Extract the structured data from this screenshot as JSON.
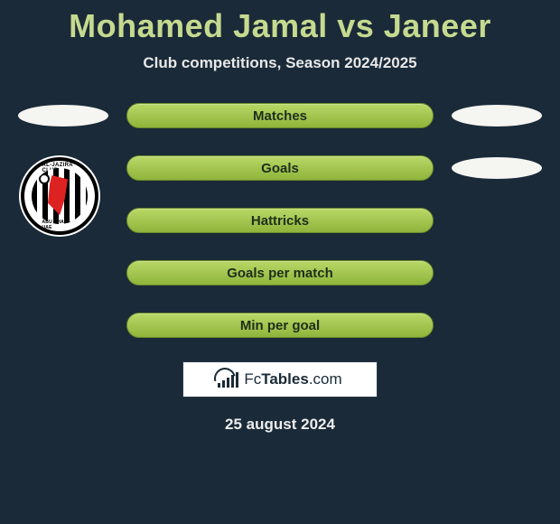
{
  "title": "Mohamed Jamal vs Janeer",
  "subtitle": "Club competitions, Season 2024/2025",
  "stats": {
    "rows": [
      {
        "label": "Matches"
      },
      {
        "label": "Goals"
      },
      {
        "label": "Hattricks"
      },
      {
        "label": "Goals per match"
      },
      {
        "label": "Min per goal"
      }
    ]
  },
  "club": {
    "top_text": "AL-JAZIRA CLUB",
    "bottom_text": "ABU DHABI-UAE"
  },
  "brand": {
    "name_prefix": "Fc",
    "name_bold": "Tables",
    "name_suffix": ".com"
  },
  "date": "25 august 2024",
  "style": {
    "background": "#1a2a38",
    "title_color": "#c5da8f",
    "bar_gradient_top": "#b9d867",
    "bar_gradient_bottom": "#8fb43b",
    "bar_border": "#6c8a2a",
    "bar_text": "#1f2e1a",
    "pill_bg": "#f5f5f2",
    "title_fontsize": 36,
    "subtitle_fontsize": 17,
    "label_fontsize": 15
  }
}
